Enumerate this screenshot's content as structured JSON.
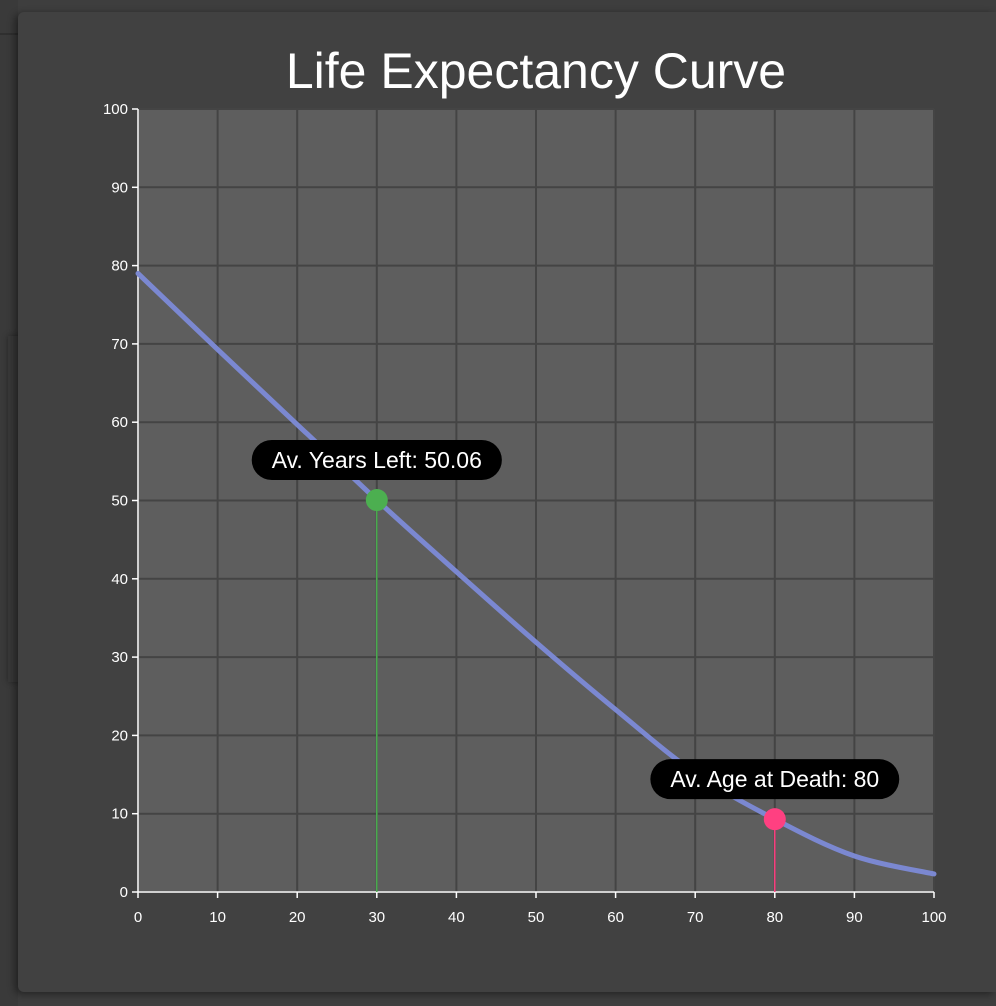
{
  "chart_data": {
    "type": "line",
    "title": "Life Expectancy Curve",
    "xlabel": "",
    "ylabel": "",
    "xlim": [
      0,
      100
    ],
    "ylim": [
      0,
      100
    ],
    "x_ticks": [
      0,
      10,
      20,
      30,
      40,
      50,
      60,
      70,
      80,
      90,
      100
    ],
    "y_ticks": [
      0,
      10,
      20,
      30,
      40,
      50,
      60,
      70,
      80,
      90,
      100
    ],
    "grid": true,
    "series": [
      {
        "color": "#7b88d1",
        "x": [
          0,
          10,
          20,
          22,
          30,
          40,
          50,
          60,
          70,
          80,
          90,
          100
        ],
        "y": [
          79,
          69.3,
          59.7,
          57.8,
          50.06,
          40.9,
          31.9,
          23.3,
          15.2,
          9.3,
          4.6,
          2.3
        ]
      }
    ],
    "annotations": [
      {
        "x": 30,
        "y": 50.06,
        "label": "Av. Years Left: 50.06",
        "color": "#4caf50"
      },
      {
        "x": 80,
        "y": 9.3,
        "label": "Av. Age at Death: 80",
        "color": "#ff4081"
      }
    ],
    "plot_background": "#5e5e5e",
    "grid_color": "#444444"
  }
}
